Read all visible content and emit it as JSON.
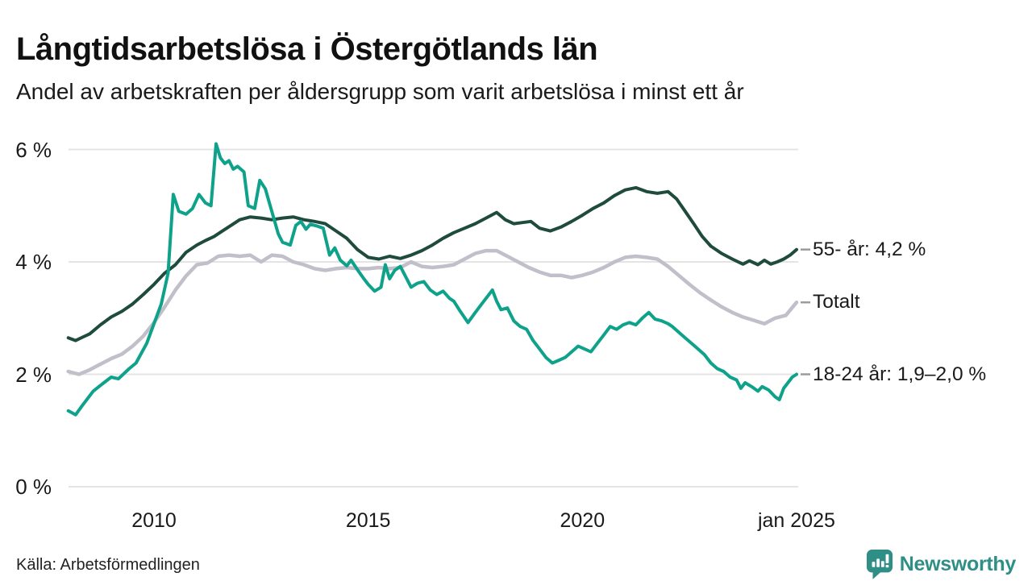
{
  "header": {
    "title": "Långtidsarbetslösa i Östergötlands län",
    "subtitle": "Andel av arbetskraften per åldersgrupp som varit arbetslösa i minst ett år"
  },
  "footer": {
    "source": "Källa: Arbetsförmedlingen",
    "brand": {
      "name": "Newsworthy",
      "color": "#2F8E85",
      "icon": "bar-chart-speech-bubble-icon"
    }
  },
  "colors": {
    "grid": "#e4e4e4",
    "tick_dash": "#9b9b9b",
    "text": "#1a1a1a"
  },
  "chart_data": {
    "type": "line",
    "title": "Långtidsarbetslösa i Östergötlands län",
    "subtitle": "Andel av arbetskraften per åldersgrupp som varit arbetslösa i minst ett år",
    "unit": "%",
    "grid": "horizontal-only",
    "legend_position": "right-end-labels",
    "x_axis": {
      "range": [
        2008.05,
        2025.05
      ],
      "ticks": [
        {
          "x": 2010,
          "label": "2010"
        },
        {
          "x": 2015,
          "label": "2015"
        },
        {
          "x": 2020,
          "label": "2020"
        },
        {
          "x": 2025,
          "label": "jan 2025"
        }
      ]
    },
    "y_axis": {
      "range": [
        0,
        6.3
      ],
      "ticks": [
        {
          "value": 0,
          "label": "0 %"
        },
        {
          "value": 2,
          "label": "2 %"
        },
        {
          "value": 4,
          "label": "4 %"
        },
        {
          "value": 6,
          "label": "6 %"
        }
      ]
    },
    "series": [
      {
        "name": "Totalt",
        "end_label": "Totalt",
        "color": "#c2bfca",
        "width": 4.5,
        "points": [
          [
            2008.0,
            2.05
          ],
          [
            2008.25,
            2.0
          ],
          [
            2008.5,
            2.08
          ],
          [
            2008.75,
            2.18
          ],
          [
            2009.0,
            2.28
          ],
          [
            2009.25,
            2.36
          ],
          [
            2009.5,
            2.5
          ],
          [
            2009.75,
            2.68
          ],
          [
            2010.0,
            2.92
          ],
          [
            2010.25,
            3.2
          ],
          [
            2010.5,
            3.5
          ],
          [
            2010.75,
            3.75
          ],
          [
            2011.0,
            3.95
          ],
          [
            2011.25,
            3.98
          ],
          [
            2011.5,
            4.1
          ],
          [
            2011.75,
            4.12
          ],
          [
            2012.0,
            4.1
          ],
          [
            2012.25,
            4.12
          ],
          [
            2012.5,
            4.0
          ],
          [
            2012.75,
            4.12
          ],
          [
            2013.0,
            4.1
          ],
          [
            2013.25,
            4.0
          ],
          [
            2013.5,
            3.95
          ],
          [
            2013.75,
            3.88
          ],
          [
            2014.0,
            3.85
          ],
          [
            2014.25,
            3.88
          ],
          [
            2014.5,
            3.9
          ],
          [
            2014.75,
            3.88
          ],
          [
            2015.0,
            3.88
          ],
          [
            2015.25,
            3.9
          ],
          [
            2015.5,
            3.88
          ],
          [
            2015.75,
            3.9
          ],
          [
            2016.0,
            4.0
          ],
          [
            2016.25,
            3.92
          ],
          [
            2016.5,
            3.9
          ],
          [
            2016.75,
            3.92
          ],
          [
            2017.0,
            3.95
          ],
          [
            2017.25,
            4.05
          ],
          [
            2017.5,
            4.15
          ],
          [
            2017.75,
            4.2
          ],
          [
            2018.0,
            4.2
          ],
          [
            2018.25,
            4.1
          ],
          [
            2018.5,
            4.0
          ],
          [
            2018.75,
            3.9
          ],
          [
            2019.0,
            3.82
          ],
          [
            2019.25,
            3.76
          ],
          [
            2019.5,
            3.76
          ],
          [
            2019.75,
            3.72
          ],
          [
            2020.0,
            3.76
          ],
          [
            2020.25,
            3.82
          ],
          [
            2020.5,
            3.9
          ],
          [
            2020.75,
            4.0
          ],
          [
            2021.0,
            4.08
          ],
          [
            2021.25,
            4.1
          ],
          [
            2021.5,
            4.08
          ],
          [
            2021.75,
            4.05
          ],
          [
            2022.0,
            3.92
          ],
          [
            2022.25,
            3.76
          ],
          [
            2022.5,
            3.6
          ],
          [
            2022.75,
            3.45
          ],
          [
            2023.0,
            3.32
          ],
          [
            2023.25,
            3.2
          ],
          [
            2023.5,
            3.1
          ],
          [
            2023.75,
            3.02
          ],
          [
            2024.0,
            2.96
          ],
          [
            2024.25,
            2.9
          ],
          [
            2024.5,
            3.0
          ],
          [
            2024.75,
            3.05
          ],
          [
            2025.0,
            3.28
          ]
        ]
      },
      {
        "name": "55- år",
        "end_label": "55- år: 4,2 %",
        "color": "#1e4b3e",
        "width": 4,
        "points": [
          [
            2008.0,
            2.65
          ],
          [
            2008.17,
            2.6
          ],
          [
            2008.33,
            2.66
          ],
          [
            2008.5,
            2.72
          ],
          [
            2008.75,
            2.88
          ],
          [
            2009.0,
            3.02
          ],
          [
            2009.25,
            3.12
          ],
          [
            2009.5,
            3.25
          ],
          [
            2009.75,
            3.42
          ],
          [
            2010.0,
            3.6
          ],
          [
            2010.25,
            3.8
          ],
          [
            2010.5,
            3.95
          ],
          [
            2010.75,
            4.17
          ],
          [
            2011.0,
            4.3
          ],
          [
            2011.2,
            4.38
          ],
          [
            2011.4,
            4.45
          ],
          [
            2011.6,
            4.55
          ],
          [
            2011.8,
            4.65
          ],
          [
            2012.0,
            4.75
          ],
          [
            2012.25,
            4.8
          ],
          [
            2012.5,
            4.78
          ],
          [
            2012.75,
            4.75
          ],
          [
            2013.0,
            4.78
          ],
          [
            2013.25,
            4.8
          ],
          [
            2013.5,
            4.75
          ],
          [
            2013.75,
            4.72
          ],
          [
            2014.0,
            4.68
          ],
          [
            2014.25,
            4.55
          ],
          [
            2014.5,
            4.42
          ],
          [
            2014.75,
            4.22
          ],
          [
            2015.0,
            4.08
          ],
          [
            2015.25,
            4.05
          ],
          [
            2015.5,
            4.1
          ],
          [
            2015.75,
            4.06
          ],
          [
            2016.0,
            4.12
          ],
          [
            2016.25,
            4.2
          ],
          [
            2016.5,
            4.3
          ],
          [
            2016.75,
            4.42
          ],
          [
            2017.0,
            4.52
          ],
          [
            2017.25,
            4.6
          ],
          [
            2017.5,
            4.68
          ],
          [
            2017.75,
            4.78
          ],
          [
            2018.0,
            4.88
          ],
          [
            2018.2,
            4.75
          ],
          [
            2018.4,
            4.68
          ],
          [
            2018.6,
            4.7
          ],
          [
            2018.8,
            4.72
          ],
          [
            2019.0,
            4.6
          ],
          [
            2019.25,
            4.55
          ],
          [
            2019.5,
            4.62
          ],
          [
            2019.75,
            4.72
          ],
          [
            2020.0,
            4.83
          ],
          [
            2020.25,
            4.95
          ],
          [
            2020.5,
            5.05
          ],
          [
            2020.75,
            5.18
          ],
          [
            2021.0,
            5.28
          ],
          [
            2021.25,
            5.32
          ],
          [
            2021.5,
            5.25
          ],
          [
            2021.75,
            5.22
          ],
          [
            2022.0,
            5.25
          ],
          [
            2022.2,
            5.12
          ],
          [
            2022.4,
            4.9
          ],
          [
            2022.6,
            4.68
          ],
          [
            2022.8,
            4.45
          ],
          [
            2023.0,
            4.28
          ],
          [
            2023.25,
            4.15
          ],
          [
            2023.5,
            4.05
          ],
          [
            2023.75,
            3.96
          ],
          [
            2023.9,
            4.02
          ],
          [
            2024.1,
            3.95
          ],
          [
            2024.25,
            4.03
          ],
          [
            2024.4,
            3.96
          ],
          [
            2024.55,
            4.0
          ],
          [
            2024.7,
            4.05
          ],
          [
            2024.85,
            4.12
          ],
          [
            2025.0,
            4.22
          ]
        ]
      },
      {
        "name": "18-24 år",
        "end_label": "18-24 år: 1,9–2,0 %",
        "color": "#0fa28b",
        "width": 4,
        "points": [
          [
            2008.0,
            1.35
          ],
          [
            2008.17,
            1.28
          ],
          [
            2008.33,
            1.45
          ],
          [
            2008.58,
            1.7
          ],
          [
            2008.83,
            1.85
          ],
          [
            2009.0,
            1.95
          ],
          [
            2009.17,
            1.92
          ],
          [
            2009.42,
            2.1
          ],
          [
            2009.58,
            2.2
          ],
          [
            2009.83,
            2.55
          ],
          [
            2010.0,
            2.9
          ],
          [
            2010.17,
            3.25
          ],
          [
            2010.33,
            3.8
          ],
          [
            2010.45,
            5.2
          ],
          [
            2010.58,
            4.9
          ],
          [
            2010.75,
            4.85
          ],
          [
            2010.9,
            4.95
          ],
          [
            2011.05,
            5.2
          ],
          [
            2011.2,
            5.05
          ],
          [
            2011.33,
            5.0
          ],
          [
            2011.45,
            6.1
          ],
          [
            2011.55,
            5.85
          ],
          [
            2011.65,
            5.75
          ],
          [
            2011.75,
            5.8
          ],
          [
            2011.85,
            5.65
          ],
          [
            2011.95,
            5.7
          ],
          [
            2012.1,
            5.6
          ],
          [
            2012.2,
            5.0
          ],
          [
            2012.35,
            4.95
          ],
          [
            2012.47,
            5.45
          ],
          [
            2012.6,
            5.3
          ],
          [
            2012.75,
            4.9
          ],
          [
            2012.9,
            4.5
          ],
          [
            2013.0,
            4.35
          ],
          [
            2013.18,
            4.3
          ],
          [
            2013.31,
            4.65
          ],
          [
            2013.43,
            4.72
          ],
          [
            2013.55,
            4.58
          ],
          [
            2013.65,
            4.67
          ],
          [
            2013.8,
            4.64
          ],
          [
            2013.95,
            4.6
          ],
          [
            2014.1,
            4.12
          ],
          [
            2014.22,
            4.25
          ],
          [
            2014.35,
            4.03
          ],
          [
            2014.5,
            3.93
          ],
          [
            2014.6,
            4.03
          ],
          [
            2014.75,
            3.86
          ],
          [
            2014.9,
            3.7
          ],
          [
            2015.0,
            3.6
          ],
          [
            2015.15,
            3.48
          ],
          [
            2015.3,
            3.55
          ],
          [
            2015.4,
            3.95
          ],
          [
            2015.5,
            3.7
          ],
          [
            2015.62,
            3.85
          ],
          [
            2015.75,
            3.92
          ],
          [
            2015.9,
            3.7
          ],
          [
            2016.0,
            3.55
          ],
          [
            2016.15,
            3.62
          ],
          [
            2016.3,
            3.65
          ],
          [
            2016.45,
            3.5
          ],
          [
            2016.6,
            3.42
          ],
          [
            2016.75,
            3.48
          ],
          [
            2016.9,
            3.35
          ],
          [
            2017.0,
            3.3
          ],
          [
            2017.15,
            3.12
          ],
          [
            2017.33,
            2.92
          ],
          [
            2017.5,
            3.1
          ],
          [
            2017.65,
            3.25
          ],
          [
            2017.8,
            3.4
          ],
          [
            2017.9,
            3.5
          ],
          [
            2018.0,
            3.3
          ],
          [
            2018.1,
            3.15
          ],
          [
            2018.25,
            3.18
          ],
          [
            2018.4,
            2.95
          ],
          [
            2018.55,
            2.85
          ],
          [
            2018.7,
            2.8
          ],
          [
            2018.85,
            2.6
          ],
          [
            2019.0,
            2.45
          ],
          [
            2019.15,
            2.3
          ],
          [
            2019.3,
            2.2
          ],
          [
            2019.45,
            2.25
          ],
          [
            2019.6,
            2.3
          ],
          [
            2019.75,
            2.4
          ],
          [
            2019.9,
            2.5
          ],
          [
            2020.05,
            2.45
          ],
          [
            2020.2,
            2.4
          ],
          [
            2020.35,
            2.55
          ],
          [
            2020.5,
            2.7
          ],
          [
            2020.65,
            2.85
          ],
          [
            2020.8,
            2.8
          ],
          [
            2020.95,
            2.88
          ],
          [
            2021.1,
            2.92
          ],
          [
            2021.25,
            2.88
          ],
          [
            2021.4,
            3.0
          ],
          [
            2021.55,
            3.1
          ],
          [
            2021.7,
            2.98
          ],
          [
            2021.85,
            2.95
          ],
          [
            2022.0,
            2.9
          ],
          [
            2022.1,
            2.85
          ],
          [
            2022.25,
            2.75
          ],
          [
            2022.4,
            2.65
          ],
          [
            2022.55,
            2.55
          ],
          [
            2022.7,
            2.45
          ],
          [
            2022.85,
            2.35
          ],
          [
            2023.0,
            2.2
          ],
          [
            2023.15,
            2.1
          ],
          [
            2023.3,
            2.05
          ],
          [
            2023.45,
            1.95
          ],
          [
            2023.6,
            1.9
          ],
          [
            2023.7,
            1.75
          ],
          [
            2023.8,
            1.85
          ],
          [
            2023.95,
            1.78
          ],
          [
            2024.1,
            1.7
          ],
          [
            2024.2,
            1.78
          ],
          [
            2024.35,
            1.72
          ],
          [
            2024.5,
            1.6
          ],
          [
            2024.6,
            1.55
          ],
          [
            2024.7,
            1.75
          ],
          [
            2024.8,
            1.85
          ],
          [
            2024.9,
            1.95
          ],
          [
            2025.0,
            2.0
          ]
        ]
      }
    ]
  }
}
